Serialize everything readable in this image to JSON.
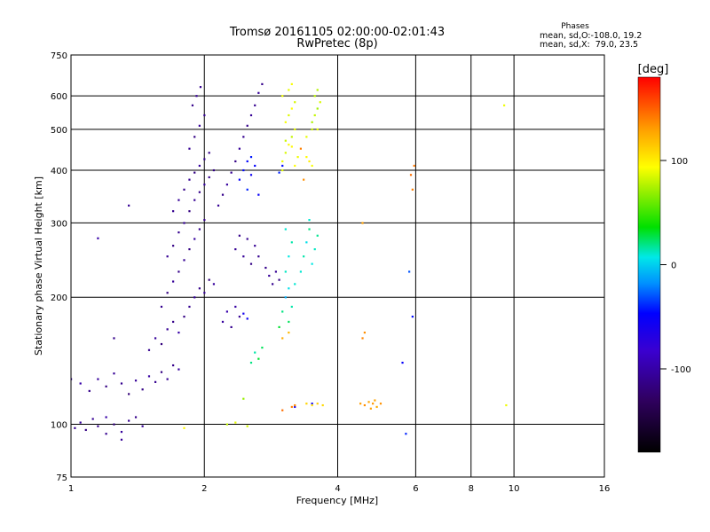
{
  "chart_data": {
    "type": "scatter",
    "title": "Tromsø 20161105 02:00:00-02:01:43",
    "subtitle": "RwPretec (8p)",
    "xlabel": "Frequency [MHz]",
    "ylabel": "Stationary phase Virtual Height [km]",
    "x_scale": "log",
    "y_scale": "log",
    "xlim": [
      1,
      16
    ],
    "ylim": [
      75,
      750
    ],
    "x_ticks": [
      1,
      2,
      4,
      6,
      8,
      10,
      16
    ],
    "y_ticks": [
      75,
      100,
      200,
      300,
      400,
      500,
      600,
      750
    ],
    "grid": true,
    "colorbar": {
      "label": "[deg]",
      "range": [
        -180,
        180
      ],
      "ticks": [
        100,
        0,
        -100
      ]
    },
    "phase_stats": {
      "header": "Phases",
      "line_o": "mean, sd,O:-108.0, 19.2",
      "line_x": "mean, sd,X:  79.0, 23.5"
    },
    "series": [
      {
        "points": [
          [
            1.02,
            98,
            -110
          ],
          [
            1.05,
            101,
            -105
          ],
          [
            1.08,
            97,
            -115
          ],
          [
            1.12,
            103,
            -108
          ],
          [
            1.15,
            99,
            -112
          ],
          [
            1.2,
            104,
            -100
          ],
          [
            1.25,
            100,
            -118
          ],
          [
            1.3,
            96,
            -105
          ],
          [
            1.35,
            102,
            -110
          ],
          [
            1.05,
            125,
            -100
          ],
          [
            1.1,
            120,
            -112
          ],
          [
            1.15,
            128,
            -105
          ],
          [
            1.2,
            123,
            -115
          ],
          [
            1.25,
            132,
            -108
          ],
          [
            1.3,
            125,
            -110
          ],
          [
            1.35,
            118,
            -120
          ],
          [
            1.4,
            127,
            -106
          ],
          [
            1.45,
            121,
            -114
          ],
          [
            1.5,
            130,
            -102
          ],
          [
            1.55,
            126,
            -110
          ],
          [
            1.6,
            133,
            -116
          ],
          [
            1.65,
            128,
            -108
          ],
          [
            1.7,
            138,
            -112
          ],
          [
            1.75,
            135,
            -104
          ],
          [
            1.5,
            150,
            -110
          ],
          [
            1.55,
            160,
            -105
          ],
          [
            1.6,
            155,
            -118
          ],
          [
            1.65,
            168,
            -108
          ],
          [
            1.7,
            175,
            -112
          ],
          [
            1.75,
            165,
            -100
          ],
          [
            1.8,
            180,
            -115
          ],
          [
            1.85,
            190,
            -109
          ],
          [
            1.9,
            200,
            -105
          ],
          [
            1.95,
            210,
            -112
          ],
          [
            2.0,
            205,
            -108
          ],
          [
            2.05,
            220,
            -118
          ],
          [
            2.1,
            215,
            -104
          ],
          [
            1.6,
            190,
            -110
          ],
          [
            1.65,
            205,
            -116
          ],
          [
            1.7,
            218,
            -106
          ],
          [
            1.75,
            230,
            -112
          ],
          [
            1.8,
            245,
            -108
          ],
          [
            1.85,
            260,
            -115
          ],
          [
            1.9,
            275,
            -104
          ],
          [
            1.95,
            290,
            -110
          ],
          [
            2.0,
            305,
            -112
          ],
          [
            1.65,
            250,
            -108
          ],
          [
            1.7,
            265,
            -114
          ],
          [
            1.75,
            285,
            -110
          ],
          [
            1.8,
            300,
            -106
          ],
          [
            1.85,
            320,
            -116
          ],
          [
            1.9,
            340,
            -108
          ],
          [
            1.95,
            355,
            -112
          ],
          [
            2.0,
            370,
            -104
          ],
          [
            2.05,
            385,
            -110
          ],
          [
            2.1,
            400,
            -114
          ],
          [
            1.7,
            320,
            -110
          ],
          [
            1.75,
            340,
            -106
          ],
          [
            1.8,
            360,
            -112
          ],
          [
            1.85,
            380,
            -108
          ],
          [
            1.9,
            395,
            -115
          ],
          [
            1.95,
            410,
            -104
          ],
          [
            2.0,
            425,
            -110
          ],
          [
            2.05,
            440,
            -112
          ],
          [
            1.85,
            450,
            -108
          ],
          [
            1.9,
            480,
            -114
          ],
          [
            1.95,
            510,
            -106
          ],
          [
            2.0,
            540,
            -110
          ],
          [
            1.88,
            570,
            -112
          ],
          [
            1.92,
            600,
            -108
          ],
          [
            1.96,
            630,
            -110
          ],
          [
            2.15,
            330,
            -108
          ],
          [
            2.2,
            350,
            -112
          ],
          [
            2.25,
            370,
            -104
          ],
          [
            2.3,
            395,
            -110
          ],
          [
            2.35,
            420,
            -114
          ],
          [
            2.4,
            450,
            -106
          ],
          [
            2.45,
            480,
            -110
          ],
          [
            2.5,
            510,
            -112
          ],
          [
            2.55,
            540,
            -108
          ],
          [
            2.6,
            570,
            -110
          ],
          [
            2.65,
            610,
            -106
          ],
          [
            2.7,
            640,
            -112
          ],
          [
            2.35,
            260,
            -108
          ],
          [
            2.4,
            280,
            -112
          ],
          [
            2.45,
            250,
            -106
          ],
          [
            2.5,
            275,
            -110
          ],
          [
            2.55,
            240,
            -114
          ],
          [
            2.6,
            265,
            -108
          ],
          [
            2.65,
            250,
            -110
          ],
          [
            2.75,
            235,
            -112
          ],
          [
            2.8,
            225,
            -106
          ],
          [
            2.85,
            215,
            -110
          ],
          [
            2.9,
            230,
            -108
          ],
          [
            2.95,
            220,
            -114
          ],
          [
            2.2,
            175,
            -104
          ],
          [
            2.25,
            185,
            -98
          ],
          [
            2.3,
            170,
            -110
          ],
          [
            2.35,
            190,
            -102
          ],
          [
            2.4,
            180,
            -108
          ],
          [
            1.2,
            95,
            -110
          ],
          [
            1.3,
            92,
            -106
          ],
          [
            1.4,
            104,
            -112
          ],
          [
            1.45,
            99,
            -108
          ],
          [
            1.15,
            276,
            -100
          ],
          [
            1.35,
            330,
            -108
          ],
          [
            1.25,
            160,
            -112
          ],
          [
            1.0,
            128,
            -105
          ]
        ]
      },
      {
        "points": [
          [
            2.4,
            380,
            -50
          ],
          [
            2.45,
            400,
            -45
          ],
          [
            2.5,
            360,
            -40
          ],
          [
            2.55,
            390,
            -55
          ],
          [
            2.6,
            410,
            -48
          ],
          [
            2.65,
            350,
            -52
          ],
          [
            2.55,
            430,
            -42
          ],
          [
            2.5,
            420,
            -46
          ],
          [
            2.45,
            183,
            -60
          ],
          [
            2.5,
            178,
            -55
          ],
          [
            3.0,
            410,
            -45
          ],
          [
            2.95,
            395,
            -40
          ],
          [
            5.8,
            230,
            -30
          ],
          [
            5.6,
            140,
            -50
          ],
          [
            5.7,
            95,
            -40
          ],
          [
            5.9,
            180,
            -45
          ],
          [
            3.2,
            110,
            -60
          ],
          [
            3.5,
            112,
            -55
          ]
        ]
      },
      {
        "points": [
          [
            2.55,
            140,
            20
          ],
          [
            2.6,
            148,
            15
          ],
          [
            2.65,
            143,
            30
          ],
          [
            2.7,
            152,
            25
          ],
          [
            3.3,
            230,
            10
          ],
          [
            3.35,
            250,
            15
          ],
          [
            3.4,
            270,
            5
          ],
          [
            3.45,
            290,
            20
          ],
          [
            3.5,
            240,
            8
          ],
          [
            3.55,
            260,
            12
          ],
          [
            3.6,
            280,
            18
          ],
          [
            3.45,
            305,
            10
          ],
          [
            3.05,
            200,
            -10
          ],
          [
            3.1,
            210,
            5
          ],
          [
            3.15,
            190,
            15
          ],
          [
            3.0,
            185,
            20
          ],
          [
            3.2,
            215,
            10
          ],
          [
            3.1,
            175,
            25
          ],
          [
            2.95,
            170,
            30
          ],
          [
            3.05,
            230,
            12
          ],
          [
            3.1,
            250,
            8
          ],
          [
            3.15,
            270,
            15
          ],
          [
            3.05,
            290,
            10
          ]
        ]
      },
      {
        "points": [
          [
            3.0,
            420,
            90
          ],
          [
            3.05,
            440,
            85
          ],
          [
            3.1,
            460,
            95
          ],
          [
            3.15,
            480,
            80
          ],
          [
            3.2,
            500,
            88
          ],
          [
            3.05,
            520,
            92
          ],
          [
            3.1,
            540,
            86
          ],
          [
            3.15,
            560,
            94
          ],
          [
            3.2,
            580,
            84
          ],
          [
            3.0,
            600,
            90
          ],
          [
            3.1,
            620,
            88
          ],
          [
            3.15,
            640,
            92
          ],
          [
            3.0,
            400,
            86
          ],
          [
            3.2,
            410,
            94
          ],
          [
            3.25,
            430,
            90
          ],
          [
            3.05,
            470,
            82
          ],
          [
            3.15,
            455,
            96
          ],
          [
            3.5,
            520,
            75
          ],
          [
            3.55,
            540,
            80
          ],
          [
            3.6,
            560,
            72
          ],
          [
            3.65,
            580,
            85
          ],
          [
            3.55,
            600,
            78
          ],
          [
            3.6,
            620,
            76
          ],
          [
            3.5,
            500,
            82
          ],
          [
            3.6,
            500,
            88
          ],
          [
            3.4,
            430,
            95
          ],
          [
            3.45,
            420,
            100
          ],
          [
            3.5,
            410,
            92
          ],
          [
            3.4,
            480,
            88
          ],
          [
            2.25,
            100,
            80
          ],
          [
            2.35,
            101,
            88
          ],
          [
            2.5,
            99,
            84
          ],
          [
            1.8,
            98,
            96
          ],
          [
            2.45,
            115,
            70
          ],
          [
            3.4,
            112,
            110
          ],
          [
            3.5,
            111,
            105
          ],
          [
            3.6,
            112,
            112
          ],
          [
            3.7,
            111,
            108
          ],
          [
            9.5,
            570,
            90
          ],
          [
            9.6,
            111,
            90
          ]
        ]
      },
      {
        "points": [
          [
            4.5,
            112,
            130
          ],
          [
            4.6,
            111,
            135
          ],
          [
            4.7,
            113,
            128
          ],
          [
            4.8,
            112,
            132
          ],
          [
            4.9,
            110,
            126
          ],
          [
            5.0,
            112,
            134
          ],
          [
            4.75,
            109,
            130
          ],
          [
            4.85,
            114,
            128
          ],
          [
            3.3,
            450,
            140
          ],
          [
            3.35,
            380,
            135
          ],
          [
            5.85,
            390,
            145
          ],
          [
            5.9,
            360,
            140
          ],
          [
            4.55,
            300,
            130
          ],
          [
            4.6,
            165,
            135
          ],
          [
            4.55,
            160,
            138
          ],
          [
            5.95,
            410,
            142
          ],
          [
            3.15,
            110,
            140
          ],
          [
            3.2,
            111,
            138
          ],
          [
            3.0,
            108,
            145
          ],
          [
            3.1,
            165,
            120
          ],
          [
            3.0,
            160,
            125
          ]
        ]
      }
    ]
  }
}
